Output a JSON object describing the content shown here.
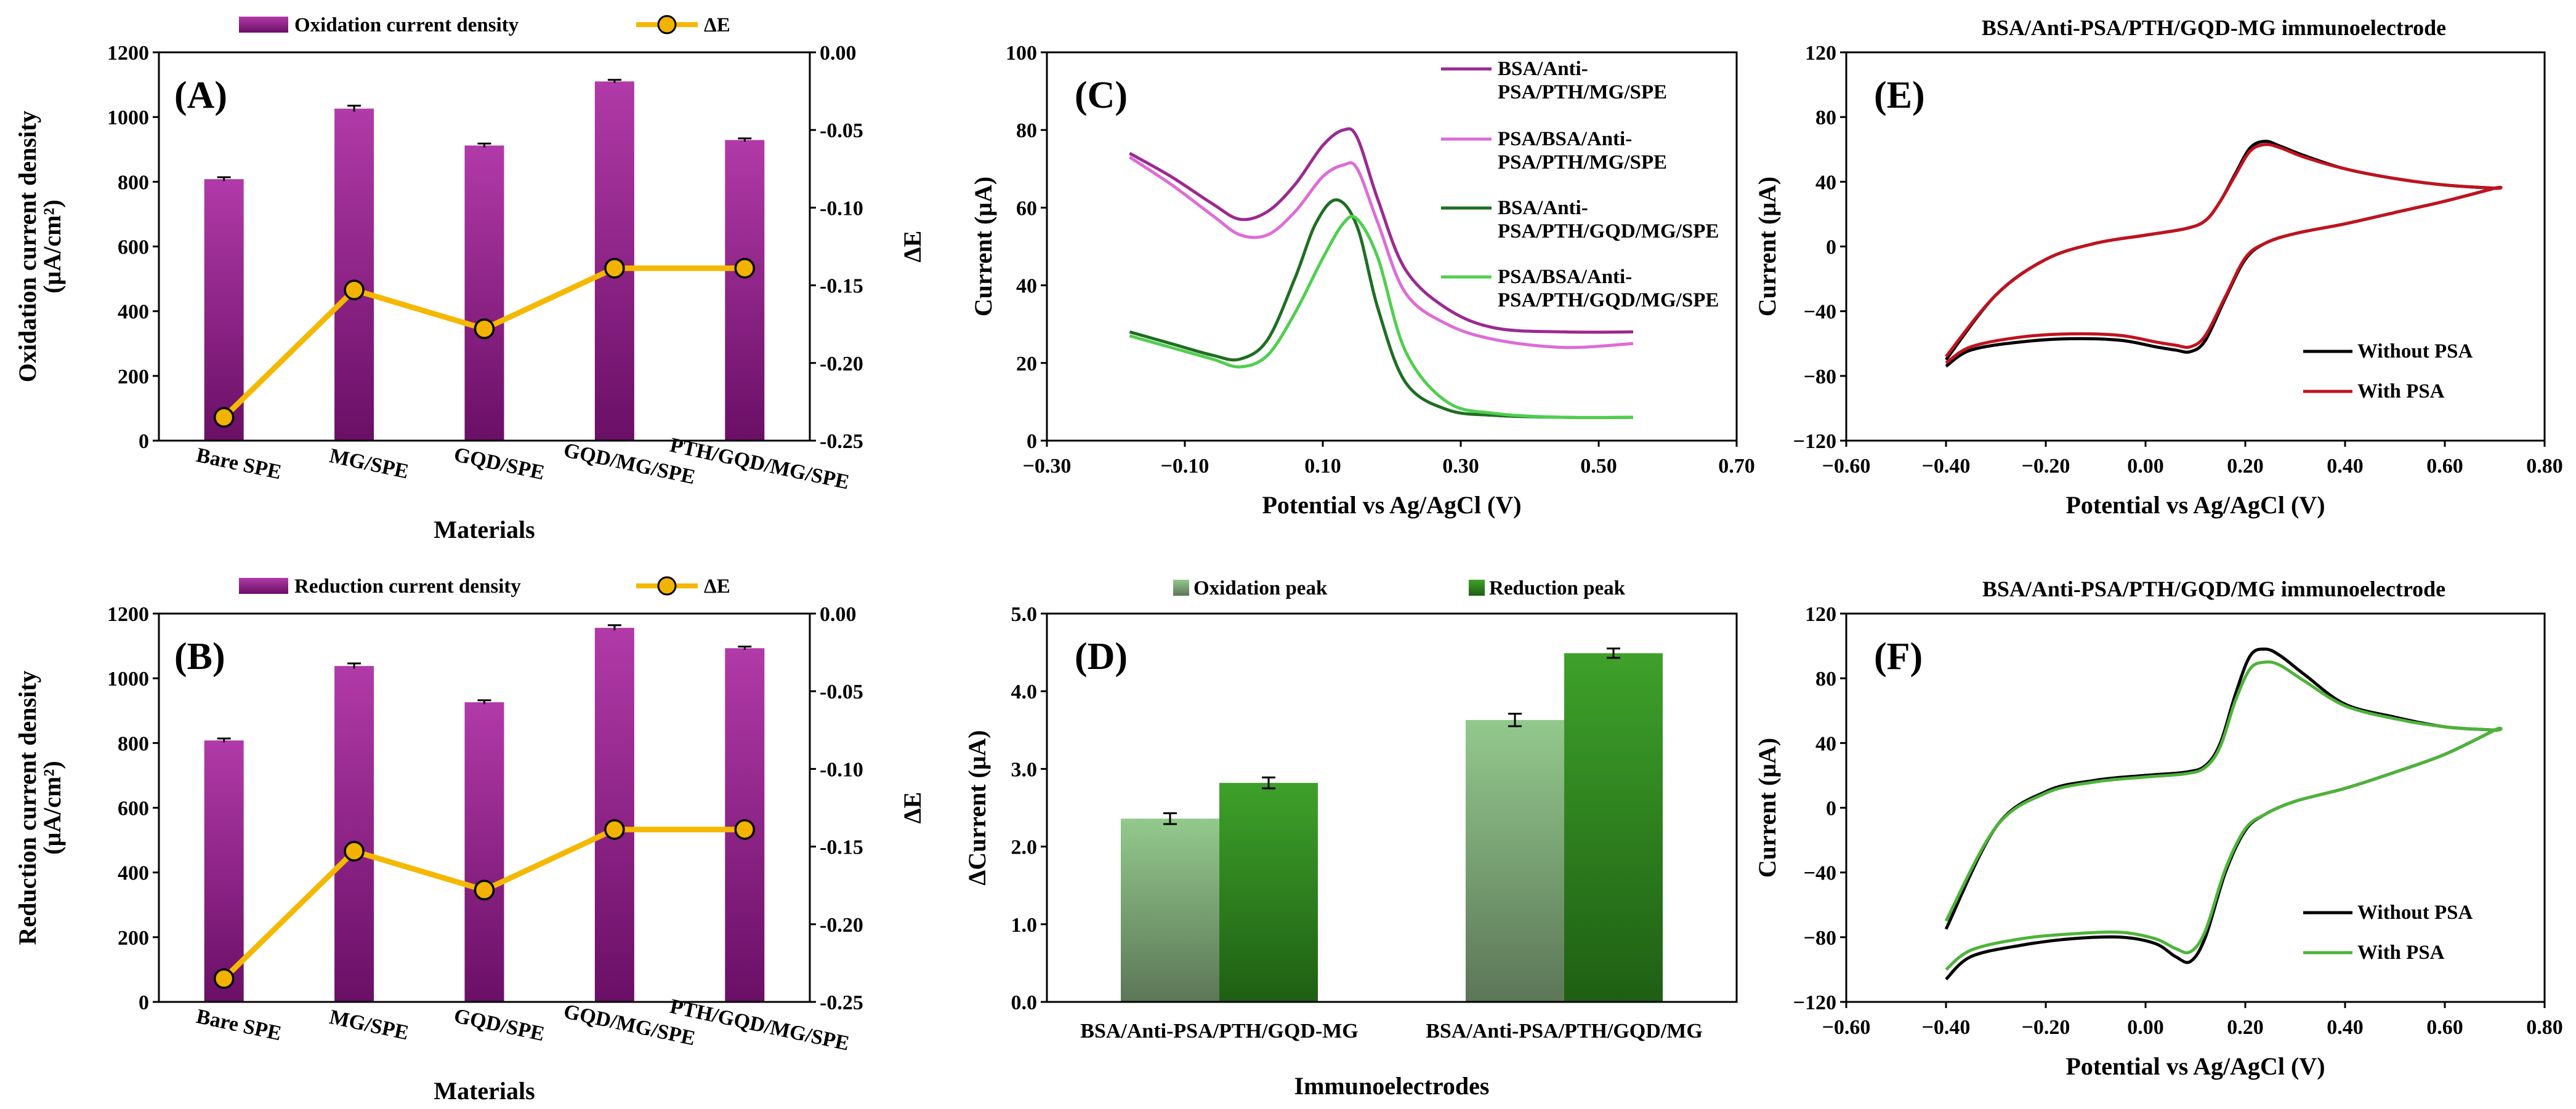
{
  "chart_data": [
    {
      "panel": "(A)",
      "type": "bar",
      "ylabel": "Oxidation current density (μA/cm²)",
      "ylabel_lines": [
        "Oxidation current density",
        "(μA/cm²)"
      ],
      "y2label": "ΔE",
      "xlabel": "Materials",
      "categories": [
        "Bare SPE",
        "MG/SPE",
        "GQD/SPE",
        "GQD/MG/SPE",
        "PTH/GQD/MG/SPE"
      ],
      "series": [
        {
          "name": "Oxidation current density",
          "type": "bar",
          "axis": "left",
          "color": "#8e1c86",
          "values": [
            808,
            1026,
            912,
            1110,
            929
          ],
          "errors": [
            6,
            9,
            6,
            5,
            5
          ]
        },
        {
          "name": "ΔE",
          "type": "line",
          "axis": "right",
          "color": "#f5b800",
          "marker": "#f2b200",
          "values": [
            -0.235,
            -0.153,
            -0.178,
            -0.139,
            -0.139
          ]
        }
      ],
      "ylim": [
        0,
        1200
      ],
      "yticks": [
        0,
        200,
        400,
        600,
        800,
        1000,
        1200
      ],
      "y2lim": [
        -0.25,
        0.0
      ],
      "y2ticks": [
        "-0.25",
        "-0.20",
        "-0.15",
        "-0.10",
        "-0.05",
        "0.00"
      ],
      "legend": "top"
    },
    {
      "panel": "(B)",
      "type": "bar",
      "ylabel": "Reduction current density (μA/cm²)",
      "ylabel_lines": [
        "Reduction current density",
        "(μA/cm²)"
      ],
      "y2label": "ΔE",
      "xlabel": "Materials",
      "categories": [
        "Bare SPE",
        "MG/SPE",
        "GQD/SPE",
        "GQD/MG/SPE",
        "PTH/GQD/MG/SPE"
      ],
      "series": [
        {
          "name": "Reduction current density",
          "type": "bar",
          "axis": "left",
          "color": "#8e1c86",
          "values": [
            808,
            1038,
            926,
            1156,
            1093
          ],
          "errors": [
            6,
            8,
            6,
            8,
            5
          ]
        },
        {
          "name": "ΔE",
          "type": "line",
          "axis": "right",
          "color": "#f5b800",
          "marker": "#f2b200",
          "values": [
            -0.235,
            -0.153,
            -0.178,
            -0.139,
            -0.139
          ]
        }
      ],
      "ylim": [
        0,
        1200
      ],
      "yticks": [
        0,
        200,
        400,
        600,
        800,
        1000,
        1200
      ],
      "y2lim": [
        -0.25,
        0.0
      ],
      "y2ticks": [
        "-0.25",
        "-0.20",
        "-0.15",
        "-0.10",
        "-0.05",
        "0.00"
      ],
      "legend": "top"
    },
    {
      "panel": "(C)",
      "type": "line",
      "xlabel": "Potential vs Ag/AgCl (V)",
      "ylabel": "Current (μA)",
      "xlim": [
        -0.3,
        0.7
      ],
      "xticks": [
        "-0.30",
        "-0.10",
        "0.10",
        "0.30",
        "0.50",
        "0.70"
      ],
      "ylim": [
        0,
        100
      ],
      "yticks": [
        "0",
        "20",
        "40",
        "60",
        "80",
        "100"
      ],
      "legend": "top-right",
      "series": [
        {
          "name": "BSA/Anti-PSA/PTH/MG/SPE",
          "legend_lines": [
            "BSA/Anti-",
            "PSA/PTH/MG/SPE"
          ],
          "color": "#9b2a90",
          "x": [
            -0.18,
            -0.12,
            -0.06,
            -0.02,
            0.02,
            0.06,
            0.1,
            0.13,
            0.15,
            0.18,
            0.22,
            0.28,
            0.35,
            0.45,
            0.55
          ],
          "y": [
            74,
            68,
            61,
            57,
            59,
            66,
            76,
            80,
            78,
            62,
            44,
            34,
            29,
            28,
            28
          ]
        },
        {
          "name": "PSA/BSA/Anti-PSA/PTH/MG/SPE",
          "legend_lines": [
            "PSA/BSA/Anti-",
            "PSA/PTH/MG/SPE"
          ],
          "color": "#de6cd6",
          "x": [
            -0.18,
            -0.12,
            -0.06,
            -0.02,
            0.02,
            0.06,
            0.1,
            0.13,
            0.15,
            0.18,
            0.22,
            0.28,
            0.35,
            0.45,
            0.55
          ],
          "y": [
            73,
            66,
            58,
            53,
            53,
            59,
            68,
            71,
            70,
            56,
            38,
            30,
            26,
            24,
            25
          ]
        },
        {
          "name": "BSA/Anti-PSA/PTH/GQD/MG/SPE",
          "legend_lines": [
            "BSA/Anti-",
            "PSA/PTH/GQD/MG/SPE"
          ],
          "color": "#1f6e22",
          "x": [
            -0.18,
            -0.12,
            -0.06,
            -0.02,
            0.02,
            0.06,
            0.09,
            0.12,
            0.15,
            0.18,
            0.22,
            0.28,
            0.35,
            0.45,
            0.55
          ],
          "y": [
            28,
            25,
            22,
            21,
            26,
            42,
            56,
            62,
            55,
            34,
            15,
            8,
            6.5,
            6,
            6
          ]
        },
        {
          "name": "PSA/BSA/Anti-PSA/PTH/GQD/MG/SPE",
          "legend_lines": [
            "PSA/BSA/Anti-",
            "PSA/PTH/GQD/MG/SPE"
          ],
          "color": "#4fcf4f",
          "x": [
            -0.18,
            -0.12,
            -0.06,
            -0.02,
            0.02,
            0.06,
            0.1,
            0.13,
            0.15,
            0.18,
            0.22,
            0.28,
            0.35,
            0.45,
            0.55
          ],
          "y": [
            27,
            24,
            21,
            19,
            22,
            33,
            47,
            56,
            57,
            47,
            23,
            10,
            7,
            6,
            6
          ]
        }
      ]
    },
    {
      "panel": "(D)",
      "type": "bar",
      "xlabel": "Immunoelectrodes",
      "ylabel": "ΔCurrent (μA)",
      "categories": [
        "BSA/Anti-PSA/PTH/GQD-MG",
        "BSA/Anti-PSA/PTH/GQD/MG"
      ],
      "series": [
        {
          "name": "Oxidation peak",
          "color_top": "#93c98d",
          "color_bottom": "#5c7657",
          "values": [
            2.36,
            3.63
          ],
          "errors": [
            0.07,
            0.08
          ]
        },
        {
          "name": "Reduction peak",
          "color_top": "#3ea12a",
          "color_bottom": "#1e5f13",
          "values": [
            2.82,
            4.49
          ],
          "errors": [
            0.07,
            0.06
          ]
        }
      ],
      "ylim": [
        0,
        5
      ],
      "yticks": [
        "0.0",
        "1.0",
        "2.0",
        "3.0",
        "4.0",
        "5.0"
      ],
      "legend": "top"
    },
    {
      "panel": "(E)",
      "type": "line",
      "title": "BSA/Anti-PSA/PTH/GQD-MG immunoelectrode",
      "xlabel": "Potential vs Ag/AgCl (V)",
      "ylabel": "Current (μA)",
      "xlim": [
        -0.6,
        0.8
      ],
      "xticks": [
        "−0.60",
        "−0.40",
        "−0.20",
        "0.00",
        "0.20",
        "0.40",
        "0.60",
        "0.80"
      ],
      "ylim": [
        -120,
        120
      ],
      "yticks": [
        "−120",
        "−80",
        "−40",
        "0",
        "40",
        "80",
        "120"
      ],
      "legend": "bottom-right",
      "series": [
        {
          "name": "Without PSA",
          "color": "#000000",
          "x": [
            -0.4,
            -0.35,
            -0.25,
            -0.15,
            -0.05,
            0.02,
            0.06,
            0.09,
            0.12,
            0.16,
            0.2,
            0.24,
            0.3,
            0.4,
            0.5,
            0.6,
            0.7,
            0.7,
            0.6,
            0.5,
            0.4,
            0.32,
            0.27,
            0.24,
            0.21,
            0.18,
            0.15,
            0.12,
            0.08,
            0.0,
            -0.1,
            -0.2,
            -0.3,
            -0.4
          ],
          "y": [
            -74,
            -64,
            -59,
            -57,
            -58,
            -62,
            -64,
            -65,
            -58,
            -32,
            -8,
            2,
            8,
            14,
            21,
            28,
            36,
            36,
            38,
            42,
            48,
            56,
            62,
            65,
            61,
            45,
            28,
            16,
            11,
            7,
            2,
            -8,
            -30,
            -70
          ]
        },
        {
          "name": "With PSA",
          "color": "#c1121f",
          "x": [
            -0.4,
            -0.35,
            -0.25,
            -0.15,
            -0.05,
            0.02,
            0.06,
            0.09,
            0.12,
            0.16,
            0.2,
            0.24,
            0.3,
            0.4,
            0.5,
            0.6,
            0.7,
            0.7,
            0.6,
            0.5,
            0.4,
            0.32,
            0.27,
            0.24,
            0.21,
            0.18,
            0.15,
            0.12,
            0.08,
            0.0,
            -0.1,
            -0.2,
            -0.3,
            -0.4
          ],
          "y": [
            -72,
            -62,
            -56,
            -54,
            -55,
            -59,
            -61,
            -62,
            -55,
            -31,
            -7,
            2,
            8,
            14,
            21,
            28,
            36,
            36,
            38,
            42,
            48,
            55,
            61,
            63,
            59,
            44,
            28,
            16,
            11,
            7,
            2,
            -8,
            -30,
            -68
          ]
        }
      ]
    },
    {
      "panel": "(F)",
      "type": "line",
      "title": "BSA/Anti-PSA/PTH/GQD/MG immunoelectrode",
      "xlabel": "Potential vs Ag/AgCl (V)",
      "ylabel": "Current (μA)",
      "xlim": [
        -0.6,
        0.8
      ],
      "xticks": [
        "−0.60",
        "−0.40",
        "−0.20",
        "0.00",
        "0.20",
        "0.40",
        "0.60",
        "0.80"
      ],
      "ylim": [
        -120,
        120
      ],
      "yticks": [
        "−120",
        "−80",
        "−40",
        "0",
        "40",
        "80",
        "120"
      ],
      "legend": "bottom-right",
      "series": [
        {
          "name": "Without PSA",
          "color": "#000000",
          "x": [
            -0.4,
            -0.35,
            -0.25,
            -0.15,
            -0.05,
            0.02,
            0.06,
            0.09,
            0.12,
            0.16,
            0.2,
            0.24,
            0.3,
            0.4,
            0.5,
            0.6,
            0.7,
            0.7,
            0.6,
            0.5,
            0.4,
            0.32,
            0.27,
            0.24,
            0.21,
            0.18,
            0.15,
            0.12,
            0.08,
            0.0,
            -0.1,
            -0.2,
            -0.3,
            -0.4
          ],
          "y": [
            -106,
            -92,
            -85,
            -81,
            -80,
            -84,
            -92,
            -95,
            -80,
            -40,
            -14,
            -4,
            4,
            12,
            22,
            33,
            48,
            48,
            50,
            56,
            64,
            82,
            94,
            98,
            94,
            70,
            40,
            26,
            22,
            20,
            17,
            10,
            -12,
            -75
          ]
        },
        {
          "name": "With PSA",
          "color": "#4eb33a",
          "x": [
            -0.4,
            -0.35,
            -0.25,
            -0.15,
            -0.05,
            0.02,
            0.06,
            0.09,
            0.12,
            0.16,
            0.2,
            0.24,
            0.3,
            0.4,
            0.5,
            0.6,
            0.7,
            0.7,
            0.6,
            0.5,
            0.4,
            0.32,
            0.27,
            0.24,
            0.21,
            0.18,
            0.15,
            0.12,
            0.08,
            0.0,
            -0.1,
            -0.2,
            -0.3,
            -0.4
          ],
          "y": [
            -100,
            -88,
            -81,
            -78,
            -77,
            -81,
            -87,
            -89,
            -76,
            -38,
            -13,
            -4,
            4,
            12,
            22,
            33,
            48,
            48,
            50,
            55,
            63,
            78,
            88,
            90,
            86,
            66,
            38,
            25,
            21,
            19,
            16,
            9,
            -12,
            -70
          ]
        }
      ]
    }
  ]
}
